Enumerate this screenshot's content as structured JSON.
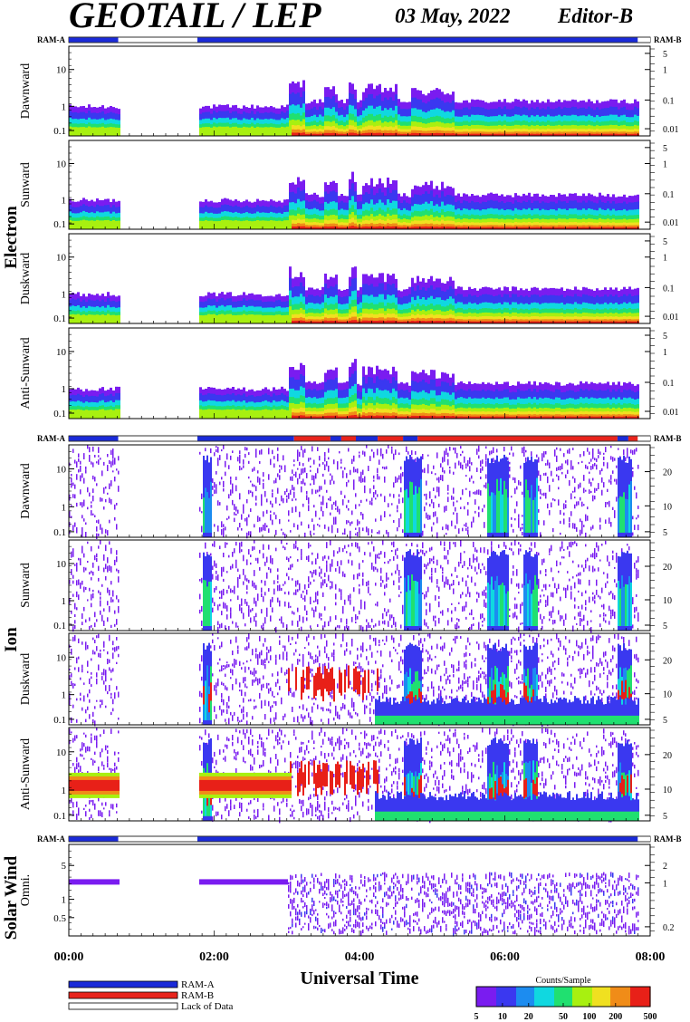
{
  "header": {
    "title": "GEOTAIL / LEP",
    "date": "03 May, 2022",
    "editor": "Editor-B"
  },
  "colors": {
    "ram_a": "#1a2ad8",
    "ram_b": "#e8241c",
    "lack_of_data": "#ffffff",
    "axis": "#000000"
  },
  "chart_data": {
    "type": "heatmap",
    "x_axis": {
      "label": "Universal Time",
      "range_hours": [
        0,
        8
      ],
      "ticks": [
        "00:00",
        "02:00",
        "04:00",
        "06:00",
        "08:00"
      ]
    },
    "colorbar": {
      "title": "Counts/Sample",
      "scale": "log",
      "range": [
        5,
        500
      ],
      "ticks": [
        "5",
        "10",
        "20",
        "50",
        "100",
        "200",
        "500"
      ],
      "colors": [
        "#7a1cf0",
        "#3a38f0",
        "#1c8cf0",
        "#10d8e0",
        "#20e070",
        "#a8f010",
        "#f0e020",
        "#f08c18",
        "#e82018"
      ]
    },
    "legend": [
      {
        "key": "ram_a",
        "label": "RAM-A"
      },
      {
        "key": "ram_b",
        "label": "RAM-B"
      },
      {
        "key": "lack_of_data",
        "label": "Lack of Data"
      }
    ],
    "groups": [
      {
        "label": "Electron",
        "status_left": "RAM-A",
        "status_right": "RAM-B",
        "status_segments": [
          {
            "start": 0.0,
            "end": 0.68,
            "mode": "ram_a"
          },
          {
            "start": 0.68,
            "end": 1.77,
            "mode": "lack_of_data"
          },
          {
            "start": 1.77,
            "end": 7.83,
            "mode": "ram_a"
          },
          {
            "start": 7.83,
            "end": 8.0,
            "mode": "lack_of_data"
          }
        ],
        "panels": [
          {
            "ylabel": "Dawnward",
            "left_ticks": [
              "0.1",
              "1",
              "10"
            ],
            "right_ticks": [
              "0.01",
              "0.1",
              "1",
              "5"
            ]
          },
          {
            "ylabel": "Sunward",
            "left_ticks": [
              "0.1",
              "1",
              "10"
            ],
            "right_ticks": [
              "0.01",
              "0.1",
              "1",
              "5"
            ]
          },
          {
            "ylabel": "Duskward",
            "left_ticks": [
              "0.1",
              "1",
              "10"
            ],
            "right_ticks": [
              "0.01",
              "0.1",
              "1",
              "5"
            ]
          },
          {
            "ylabel": "Anti-Sunward",
            "left_ticks": [
              "0.1",
              "1",
              "10"
            ],
            "right_ticks": [
              "0.01",
              "0.1",
              "1",
              "5"
            ]
          }
        ]
      },
      {
        "label": "Ion",
        "status_left": "RAM-A",
        "status_right": "RAM-B",
        "status_segments": [
          {
            "start": 0.0,
            "end": 0.68,
            "mode": "ram_a"
          },
          {
            "start": 0.68,
            "end": 1.77,
            "mode": "lack_of_data"
          },
          {
            "start": 1.77,
            "end": 3.1,
            "mode": "ram_a"
          },
          {
            "start": 3.1,
            "end": 3.6,
            "mode": "ram_b"
          },
          {
            "start": 3.6,
            "end": 3.75,
            "mode": "ram_a"
          },
          {
            "start": 3.75,
            "end": 3.95,
            "mode": "ram_b"
          },
          {
            "start": 3.95,
            "end": 4.25,
            "mode": "ram_a"
          },
          {
            "start": 4.25,
            "end": 4.6,
            "mode": "ram_b"
          },
          {
            "start": 4.6,
            "end": 4.8,
            "mode": "ram_a"
          },
          {
            "start": 4.8,
            "end": 7.55,
            "mode": "ram_b"
          },
          {
            "start": 7.55,
            "end": 7.7,
            "mode": "ram_a"
          },
          {
            "start": 7.7,
            "end": 7.83,
            "mode": "ram_b"
          },
          {
            "start": 7.83,
            "end": 8.0,
            "mode": "lack_of_data"
          }
        ],
        "panels": [
          {
            "ylabel": "Dawnward",
            "left_ticks": [
              "0.1",
              "1",
              "10"
            ],
            "right_ticks": [
              "5",
              "10",
              "20"
            ]
          },
          {
            "ylabel": "Sunward",
            "left_ticks": [
              "0.1",
              "1",
              "10"
            ],
            "right_ticks": [
              "5",
              "10",
              "20"
            ]
          },
          {
            "ylabel": "Duskward",
            "left_ticks": [
              "0.1",
              "1",
              "10"
            ],
            "right_ticks": [
              "5",
              "10",
              "20"
            ]
          },
          {
            "ylabel": "Anti-Sunward",
            "left_ticks": [
              "0.1",
              "1",
              "10"
            ],
            "right_ticks": [
              "5",
              "10",
              "20"
            ]
          }
        ]
      },
      {
        "label": "Solar Wind",
        "status_left": "RAM-A",
        "status_right": "RAM-B",
        "status_segments": [
          {
            "start": 0.0,
            "end": 0.68,
            "mode": "ram_a"
          },
          {
            "start": 0.68,
            "end": 1.77,
            "mode": "lack_of_data"
          },
          {
            "start": 1.77,
            "end": 7.83,
            "mode": "ram_a"
          },
          {
            "start": 7.83,
            "end": 8.0,
            "mode": "lack_of_data"
          }
        ],
        "panels": [
          {
            "ylabel": "Omni.",
            "left_ticks": [
              "0.5",
              "1",
              "5"
            ],
            "right_ticks": [
              "0.2",
              "1",
              "2"
            ]
          }
        ]
      }
    ]
  }
}
